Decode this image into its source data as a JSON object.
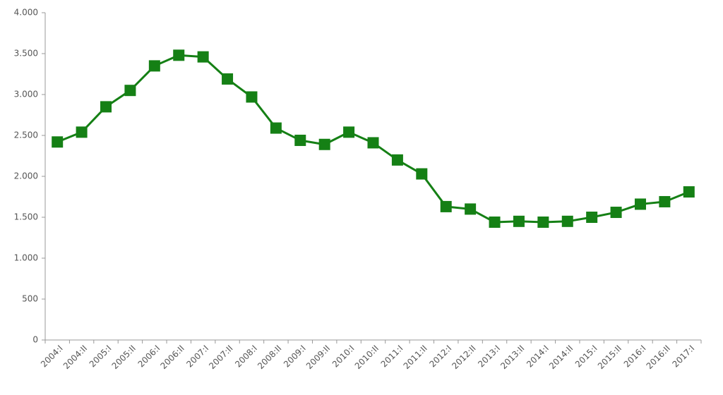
{
  "chart_data": {
    "type": "line",
    "categories": [
      "2004:I",
      "2004:II",
      "2005:I",
      "2005:II",
      "2006:I",
      "2006:II",
      "2007:I",
      "2007:II",
      "2008:I",
      "2008:II",
      "2009:I",
      "2009:II",
      "2010:I",
      "2010:II",
      "2011:I",
      "2011:II",
      "2012:I",
      "2012:II",
      "2013:I",
      "2013:II",
      "2014:I",
      "2014:II",
      "2015:I",
      "2015:II",
      "2016:I",
      "2016:II",
      "2017:I"
    ],
    "values": [
      2420,
      2540,
      2850,
      3050,
      3350,
      3480,
      3460,
      3190,
      2970,
      2590,
      2440,
      2390,
      2540,
      2410,
      2200,
      2030,
      1630,
      1600,
      1440,
      1450,
      1440,
      1450,
      1500,
      1560,
      1660,
      1690,
      1810
    ],
    "color": "#158015",
    "ylim": [
      0,
      4000
    ],
    "yticks": [
      0,
      500,
      {
        "value": 1000,
        "label": "1.000"
      },
      {
        "value": 1500,
        "label": "1.500"
      },
      {
        "value": 2000,
        "label": "2.000"
      },
      {
        "value": 2500,
        "label": "2.500"
      },
      {
        "value": 3000,
        "label": "3.000"
      },
      {
        "value": 3500,
        "label": "3.500"
      },
      {
        "value": 4000,
        "label": "4.000"
      }
    ],
    "grid": false
  }
}
